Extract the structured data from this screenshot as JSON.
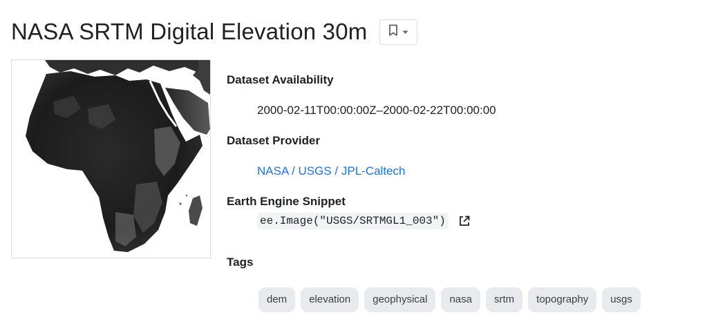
{
  "header": {
    "title": "NASA SRTM Digital Elevation 30m",
    "bookmark_icon": "bookmark-outline-icon",
    "dropdown_icon": "caret-down-icon"
  },
  "thumbnail": {
    "subject": "africa-elevation-map"
  },
  "availability": {
    "label": "Dataset Availability",
    "value": "2000-02-11T00:00:00Z–2000-02-22T00:00:00"
  },
  "provider": {
    "label": "Dataset Provider",
    "value": "NASA / USGS / JPL-Caltech"
  },
  "snippet": {
    "label": "Earth Engine Snippet",
    "value": "ee.Image(\"USGS/SRTMGL1_003\")",
    "icon": "open-in-new-icon"
  },
  "tags": {
    "label": "Tags",
    "items": [
      "dem",
      "elevation",
      "geophysical",
      "nasa",
      "srtm",
      "topography",
      "usgs"
    ]
  },
  "colors": {
    "link": "#1a73e8",
    "chip_bg": "#e8eaed",
    "border": "#dadce0"
  }
}
